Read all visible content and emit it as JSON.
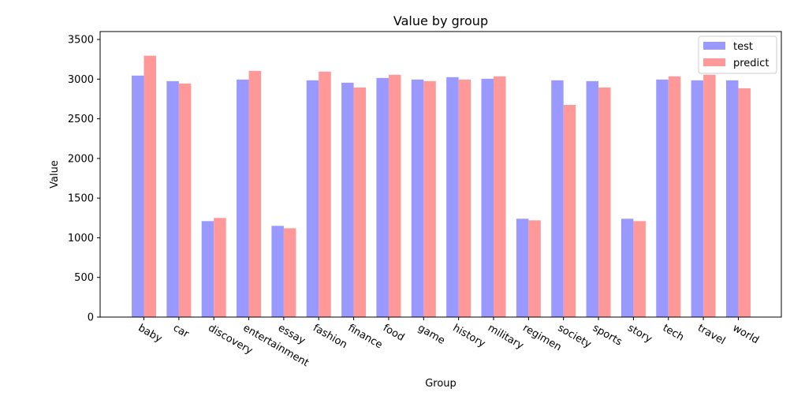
{
  "chart_data": {
    "type": "bar",
    "title": "Value by group",
    "xlabel": "Group",
    "ylabel": "Value",
    "categories": [
      "baby",
      "car",
      "discovery",
      "entertainment",
      "essay",
      "fashion",
      "finance",
      "food",
      "game",
      "history",
      "military",
      "regimen",
      "society",
      "sports",
      "story",
      "tech",
      "travel",
      "world"
    ],
    "series": [
      {
        "name": "test",
        "color": "#9999ff",
        "values": [
          3045,
          2975,
          1210,
          2995,
          1150,
          2985,
          2955,
          3015,
          2995,
          3025,
          3005,
          1240,
          2985,
          2975,
          1240,
          2995,
          2985,
          2985
        ]
      },
      {
        "name": "predict",
        "color": "#ff9999",
        "values": [
          3295,
          2945,
          1250,
          3105,
          1120,
          3095,
          2895,
          3055,
          2975,
          2995,
          3035,
          1220,
          2675,
          2895,
          1210,
          3035,
          3055,
          2885
        ]
      }
    ],
    "ylim": [
      0,
      3600
    ],
    "yticks": [
      "0",
      "500",
      "1000",
      "1500",
      "2000",
      "2500",
      "3000",
      "3500"
    ],
    "grid": false,
    "legend_position": "top-right"
  }
}
